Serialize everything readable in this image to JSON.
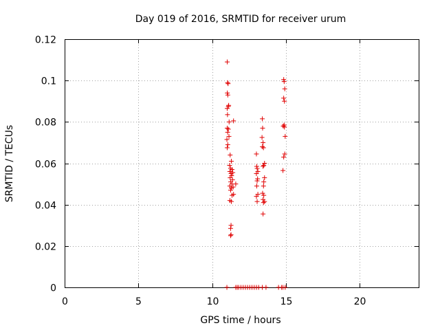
{
  "chart_data": {
    "type": "scatter",
    "title": "Day 019 of 2016, SRMTID for receiver urum",
    "xlabel": "GPS time / hours",
    "ylabel": "SRMTID / TECUs",
    "xlim": [
      0,
      24
    ],
    "ylim": [
      0,
      0.12
    ],
    "xticks": [
      0,
      5,
      10,
      15,
      20
    ],
    "xtick_labels": [
      "0",
      "5",
      "10",
      "15",
      "20"
    ],
    "yticks": [
      0,
      0.02,
      0.04,
      0.06,
      0.08,
      0.1,
      0.12
    ],
    "ytick_labels": [
      "0",
      "0.02",
      "0.04",
      "0.06",
      "0.08",
      "0.1",
      "0.12"
    ],
    "grid": true,
    "marker": "+",
    "color": "#e00000",
    "series": [
      {
        "name": "SRMTID",
        "points": [
          [
            11.02,
            0.109
          ],
          [
            11.05,
            0.099
          ],
          [
            11.08,
            0.0985
          ],
          [
            11.03,
            0.094
          ],
          [
            11.06,
            0.093
          ],
          [
            11.1,
            0.0875
          ],
          [
            11.02,
            0.0865
          ],
          [
            11.12,
            0.088
          ],
          [
            11.04,
            0.0835
          ],
          [
            11.15,
            0.08
          ],
          [
            11.02,
            0.077
          ],
          [
            11.1,
            0.0765
          ],
          [
            11.05,
            0.075
          ],
          [
            11.14,
            0.073
          ],
          [
            11.0,
            0.0715
          ],
          [
            11.06,
            0.069
          ],
          [
            11.02,
            0.0675
          ],
          [
            11.45,
            0.0805
          ],
          [
            11.22,
            0.064
          ],
          [
            11.3,
            0.061
          ],
          [
            11.18,
            0.059
          ],
          [
            11.25,
            0.0575
          ],
          [
            11.35,
            0.057
          ],
          [
            11.2,
            0.056
          ],
          [
            11.4,
            0.0555
          ],
          [
            11.28,
            0.055
          ],
          [
            11.32,
            0.054
          ],
          [
            11.22,
            0.053
          ],
          [
            11.38,
            0.052
          ],
          [
            11.26,
            0.051
          ],
          [
            11.34,
            0.05
          ],
          [
            11.2,
            0.049
          ],
          [
            11.42,
            0.0485
          ],
          [
            11.3,
            0.048
          ],
          [
            11.25,
            0.047
          ],
          [
            11.6,
            0.05
          ],
          [
            11.45,
            0.045
          ],
          [
            11.35,
            0.0445
          ],
          [
            11.2,
            0.042
          ],
          [
            11.3,
            0.0415
          ],
          [
            11.28,
            0.03
          ],
          [
            11.25,
            0.0285
          ],
          [
            11.28,
            0.0255
          ],
          [
            11.25,
            0.025
          ],
          [
            13.0,
            0.0645
          ],
          [
            13.02,
            0.0585
          ],
          [
            13.05,
            0.0575
          ],
          [
            13.1,
            0.056
          ],
          [
            13.0,
            0.055
          ],
          [
            13.08,
            0.0525
          ],
          [
            13.05,
            0.0515
          ],
          [
            13.02,
            0.049
          ],
          [
            13.1,
            0.045
          ],
          [
            13.0,
            0.044
          ],
          [
            13.05,
            0.0415
          ],
          [
            13.4,
            0.0815
          ],
          [
            13.42,
            0.077
          ],
          [
            13.38,
            0.0725
          ],
          [
            13.45,
            0.07
          ],
          [
            13.4,
            0.068
          ],
          [
            13.48,
            0.0675
          ],
          [
            13.55,
            0.06
          ],
          [
            13.5,
            0.059
          ],
          [
            13.45,
            0.0585
          ],
          [
            13.55,
            0.053
          ],
          [
            13.5,
            0.051
          ],
          [
            13.48,
            0.049
          ],
          [
            13.42,
            0.0455
          ],
          [
            13.5,
            0.0445
          ],
          [
            13.45,
            0.0425
          ],
          [
            13.55,
            0.0415
          ],
          [
            13.48,
            0.041
          ],
          [
            13.45,
            0.0355
          ],
          [
            14.85,
            0.1005
          ],
          [
            14.88,
            0.0995
          ],
          [
            14.92,
            0.096
          ],
          [
            14.85,
            0.0915
          ],
          [
            14.9,
            0.09
          ],
          [
            14.88,
            0.0785
          ],
          [
            14.82,
            0.078
          ],
          [
            14.9,
            0.0775
          ],
          [
            14.95,
            0.073
          ],
          [
            14.92,
            0.0645
          ],
          [
            14.85,
            0.063
          ],
          [
            14.8,
            0.0565
          ],
          [
            11.0,
            0.0
          ],
          [
            11.6,
            0.0
          ],
          [
            11.7,
            0.0
          ],
          [
            11.8,
            0.0
          ],
          [
            11.95,
            0.0
          ],
          [
            12.1,
            0.0
          ],
          [
            12.25,
            0.0
          ],
          [
            12.4,
            0.0
          ],
          [
            12.55,
            0.0
          ],
          [
            12.7,
            0.0
          ],
          [
            12.85,
            0.0
          ],
          [
            13.0,
            0.0
          ],
          [
            13.15,
            0.0
          ],
          [
            13.4,
            0.0
          ],
          [
            13.65,
            0.0
          ],
          [
            14.5,
            0.0
          ],
          [
            14.7,
            0.0
          ],
          [
            14.8,
            0.0
          ],
          [
            14.95,
            0.0
          ]
        ]
      }
    ]
  }
}
